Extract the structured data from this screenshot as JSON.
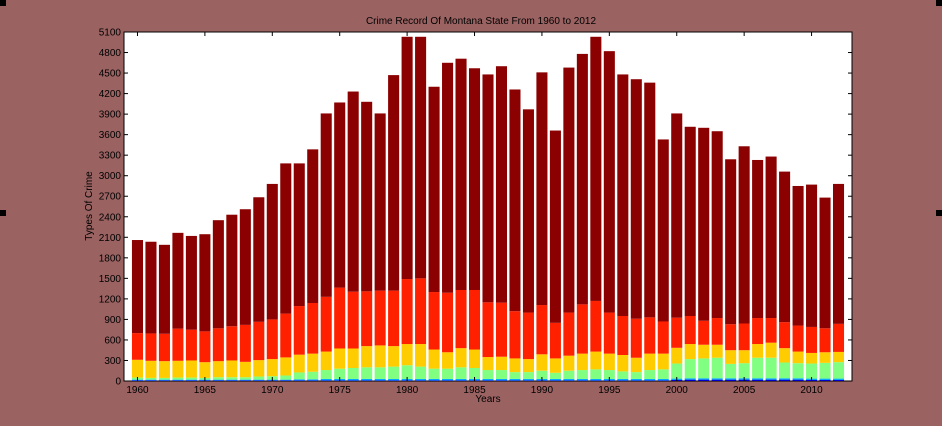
{
  "chart_data": {
    "type": "bar",
    "stacked": true,
    "title": "Crime Record Of Montana State From 1960 to 2012",
    "xlabel": "Years",
    "ylabel": "Types Of Crime",
    "xlim": [
      1959,
      2013
    ],
    "ylim": [
      0,
      5100
    ],
    "yticks": [
      0,
      300,
      600,
      900,
      1200,
      1500,
      1800,
      2100,
      2400,
      2700,
      3000,
      3300,
      3600,
      3900,
      4200,
      4500,
      4800,
      5100
    ],
    "xticks": [
      1960,
      1965,
      1970,
      1975,
      1980,
      1985,
      1990,
      1995,
      2000,
      2005,
      2010
    ],
    "grid": false,
    "legend": "none",
    "x": [
      1960,
      1961,
      1962,
      1963,
      1964,
      1965,
      1966,
      1967,
      1968,
      1969,
      1970,
      1971,
      1972,
      1973,
      1974,
      1975,
      1976,
      1977,
      1978,
      1979,
      1980,
      1981,
      1982,
      1983,
      1984,
      1985,
      1986,
      1987,
      1988,
      1989,
      1990,
      1991,
      1992,
      1993,
      1994,
      1995,
      1996,
      1997,
      1998,
      1999,
      2000,
      2001,
      2002,
      2003,
      2004,
      2005,
      2006,
      2007,
      2008,
      2009,
      2010,
      2011,
      2012
    ],
    "series": [
      {
        "color": "#0000cc",
        "values": [
          10,
          10,
          10,
          10,
          10,
          10,
          10,
          10,
          10,
          10,
          10,
          10,
          10,
          10,
          10,
          10,
          10,
          10,
          10,
          10,
          10,
          10,
          10,
          10,
          10,
          10,
          10,
          10,
          10,
          10,
          10,
          10,
          10,
          10,
          10,
          10,
          10,
          10,
          10,
          10,
          15,
          20,
          20,
          20,
          20,
          20,
          20,
          20,
          20,
          20,
          15,
          15,
          15
        ]
      },
      {
        "color": "#00aaff",
        "values": [
          10,
          10,
          10,
          10,
          10,
          10,
          10,
          10,
          10,
          10,
          10,
          10,
          15,
          15,
          20,
          20,
          20,
          20,
          20,
          20,
          20,
          20,
          20,
          20,
          20,
          20,
          20,
          20,
          20,
          20,
          20,
          20,
          20,
          20,
          20,
          20,
          20,
          20,
          20,
          20,
          20,
          20,
          20,
          20,
          20,
          20,
          20,
          20,
          20,
          20,
          20,
          20,
          20
        ]
      },
      {
        "color": "#80ff80",
        "values": [
          30,
          25,
          25,
          30,
          30,
          25,
          35,
          35,
          35,
          45,
          50,
          60,
          100,
          110,
          130,
          150,
          160,
          170,
          170,
          180,
          200,
          180,
          150,
          150,
          170,
          160,
          130,
          130,
          100,
          100,
          120,
          90,
          120,
          130,
          140,
          130,
          110,
          100,
          130,
          140,
          220,
          280,
          290,
          300,
          210,
          220,
          300,
          300,
          230,
          220,
          220,
          230,
          240
        ]
      },
      {
        "color": "#ffcc00",
        "values": [
          260,
          250,
          245,
          245,
          250,
          230,
          235,
          245,
          225,
          240,
          250,
          265,
          260,
          265,
          270,
          295,
          285,
          310,
          320,
          300,
          310,
          330,
          280,
          240,
          280,
          270,
          190,
          195,
          200,
          190,
          240,
          210,
          220,
          240,
          260,
          240,
          240,
          210,
          240,
          230,
          230,
          220,
          200,
          190,
          200,
          190,
          200,
          220,
          210,
          170,
          155,
          155,
          150
        ]
      },
      {
        "color": "#ff2000",
        "values": [
          390,
          400,
          400,
          470,
          450,
          450,
          480,
          500,
          540,
          560,
          580,
          640,
          710,
          740,
          800,
          890,
          830,
          800,
          800,
          810,
          950,
          960,
          840,
          870,
          850,
          870,
          800,
          790,
          690,
          680,
          720,
          520,
          630,
          720,
          740,
          600,
          570,
          570,
          530,
          470,
          440,
          410,
          350,
          390,
          380,
          390,
          380,
          360,
          380,
          380,
          380,
          350,
          410
        ]
      },
      {
        "color": "#8b0000",
        "values": [
          1360,
          1340,
          1300,
          1400,
          1370,
          1420,
          1580,
          1630,
          1690,
          1820,
          1980,
          2195,
          2085,
          2245,
          2680,
          2705,
          2925,
          2770,
          2590,
          3150,
          3540,
          3530,
          3000,
          3360,
          3380,
          3240,
          3330,
          3455,
          3240,
          2970,
          3400,
          2810,
          3580,
          3660,
          3860,
          3820,
          3530,
          3500,
          3430,
          2660,
          2985,
          2765,
          2820,
          2730,
          2410,
          2590,
          2310,
          2360,
          2200,
          2040,
          2080,
          1910,
          2045
        ]
      }
    ]
  }
}
